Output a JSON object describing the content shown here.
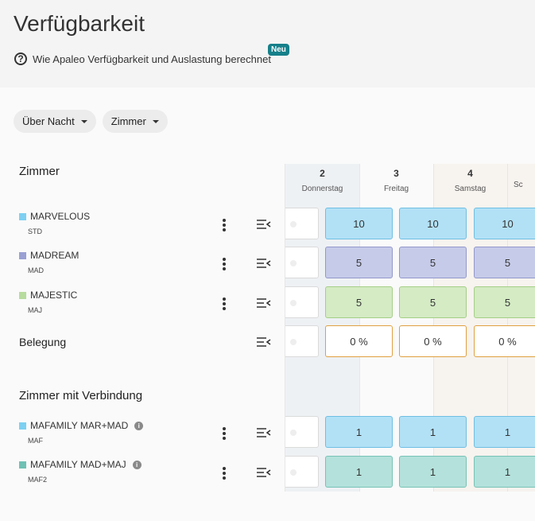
{
  "header": {
    "title": "Verfügbarkeit",
    "help_link": "Wie Apaleo Verfügbarkeit und Auslastung berechnet",
    "badge": "Neu"
  },
  "filters": [
    {
      "label": "Über Nacht"
    },
    {
      "label": "Zimmer"
    }
  ],
  "sections": {
    "rooms_title": "Zimmer",
    "connected_title": "Zimmer mit Verbindung",
    "occupancy_label": "Belegung"
  },
  "rooms": [
    {
      "name": "MARVELOUS",
      "code": "STD",
      "color": "#7dd0f2"
    },
    {
      "name": "MADREAM",
      "code": "MAD",
      "color": "#9aa0d3"
    },
    {
      "name": "MAJESTIC",
      "code": "MAJ",
      "color": "#b7dc9e"
    }
  ],
  "connected_rooms": [
    {
      "name": "MAFAMILY MAR+MAD",
      "code": "MAF",
      "color": "#7dd0f2"
    },
    {
      "name": "MAFAMILY MAD+MAJ",
      "code": "MAF2",
      "color": "#6ec1b5"
    }
  ],
  "days": [
    {
      "num": "2",
      "weekday": "Donnerstag"
    },
    {
      "num": "3",
      "weekday": "Freitag"
    },
    {
      "num": "4",
      "weekday": "Samstag"
    },
    {
      "num": "",
      "weekday": "Sc"
    }
  ],
  "values": {
    "MARVELOUS": [
      "10",
      "10",
      "10"
    ],
    "MADREAM": [
      "5",
      "5",
      "5"
    ],
    "MAJESTIC": [
      "5",
      "5",
      "5"
    ],
    "occupancy": [
      "0 %",
      "0 %",
      "0 %"
    ],
    "MAFAMILY MAR+MAD": [
      "1",
      "1",
      "1"
    ],
    "MAFAMILY MAD+MAJ": [
      "1",
      "1",
      "1"
    ]
  }
}
